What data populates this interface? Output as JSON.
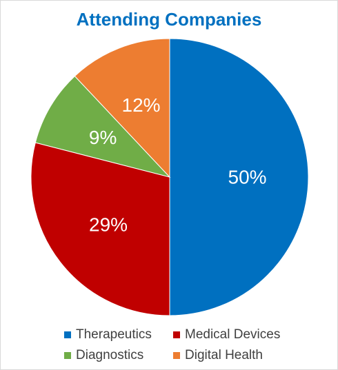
{
  "chart_data": {
    "type": "pie",
    "title": "Attending Companies",
    "slices": [
      {
        "name": "Therapeutics",
        "value": 50,
        "label": "50%",
        "color": "#0070c0"
      },
      {
        "name": "Medical Devices",
        "value": 29,
        "label": "29%",
        "color": "#c00000"
      },
      {
        "name": "Diagnostics",
        "value": 9,
        "label": "9%",
        "color": "#70ad47"
      },
      {
        "name": "Digital Health",
        "value": 12,
        "label": "12%",
        "color": "#ed7d31"
      }
    ],
    "legend_position": "bottom"
  }
}
